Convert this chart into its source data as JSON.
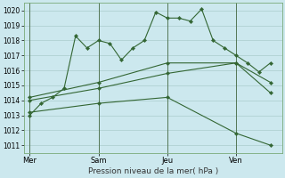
{
  "title": "Pression niveau de la mer( hPa )",
  "bg_color": "#cce8ee",
  "grid_color": "#aacccc",
  "line_color": "#336633",
  "ylim": [
    1010.5,
    1020.5
  ],
  "yticks": [
    1011,
    1012,
    1013,
    1014,
    1015,
    1016,
    1017,
    1018,
    1019,
    1020
  ],
  "xtick_labels": [
    "Mer",
    "Sam",
    "Jeu",
    "Ven"
  ],
  "xtick_positions": [
    0,
    6,
    12,
    18
  ],
  "xlim": [
    -0.5,
    22
  ],
  "vline_positions": [
    0,
    6,
    12,
    18
  ],
  "series1_x": [
    0,
    1,
    2,
    3,
    4,
    5,
    6,
    7,
    8,
    9,
    10,
    11,
    12,
    13,
    14,
    15,
    16,
    17,
    18,
    19,
    20,
    21
  ],
  "series1_y": [
    1013.0,
    1013.8,
    1014.2,
    1014.8,
    1018.3,
    1017.5,
    1018.0,
    1017.8,
    1016.7,
    1017.5,
    1018.0,
    1019.9,
    1019.5,
    1019.5,
    1019.3,
    1020.1,
    1018.0,
    1017.5,
    1017.0,
    1016.5,
    1015.9,
    1016.5
  ],
  "series2_x": [
    0,
    6,
    12,
    18,
    21
  ],
  "series2_y": [
    1014.2,
    1015.2,
    1016.5,
    1016.5,
    1015.2
  ],
  "series3_x": [
    0,
    6,
    12,
    18,
    21
  ],
  "series3_y": [
    1014.0,
    1014.8,
    1015.8,
    1016.5,
    1014.5
  ],
  "series4_x": [
    0,
    6,
    12,
    18,
    21
  ],
  "series4_y": [
    1013.2,
    1013.8,
    1014.2,
    1011.8,
    1011.0
  ]
}
